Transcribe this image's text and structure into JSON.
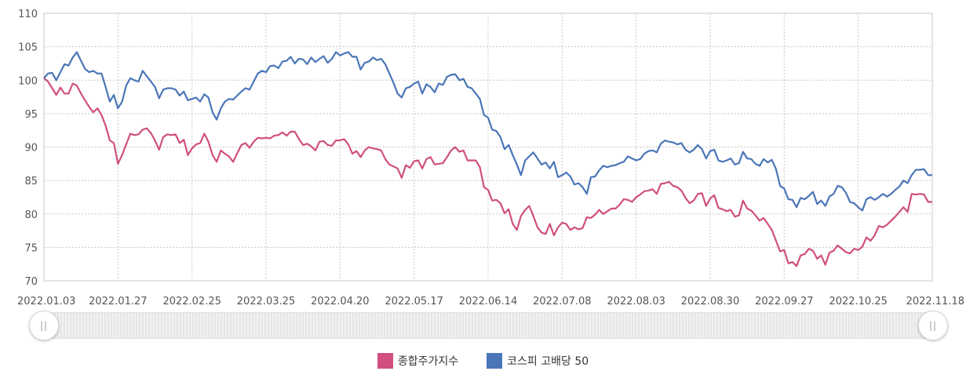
{
  "chart_data": {
    "type": "line",
    "x_ticks": [
      "2022.01.03",
      "2022.01.27",
      "2022.02.25",
      "2022.03.25",
      "2022.04.20",
      "2022.05.17",
      "2022.06.14",
      "2022.07.08",
      "2022.08.03",
      "2022.08.30",
      "2022.09.27",
      "2022.10.25",
      "2022.11.18"
    ],
    "y_ticks": [
      110,
      105,
      100,
      95,
      90,
      85,
      80,
      75,
      70
    ],
    "ylim": [
      70,
      110
    ],
    "grid": true,
    "legend_position": "bottom",
    "series": [
      {
        "name": "종합주가지수",
        "color": "#d04f7f",
        "values": [
          100.3,
          99.8,
          98.8,
          97.8,
          98.9,
          98.0,
          98.0,
          99.5,
          99.2,
          98.0,
          97.0,
          96.0,
          95.2,
          95.8,
          94.8,
          93.2,
          91.0,
          90.6,
          87.5,
          88.8,
          90.4,
          92.0,
          91.8,
          91.9,
          92.6,
          92.8,
          92.1,
          91.0,
          89.6,
          91.5,
          91.9,
          91.8,
          91.9,
          90.6,
          91.1,
          88.8,
          89.8,
          90.4,
          90.6,
          92.0,
          90.8,
          88.8,
          87.8,
          89.5,
          89.0,
          88.6,
          87.8,
          89.1,
          90.3,
          90.6,
          89.9,
          90.8,
          91.4,
          91.3,
          91.4,
          91.3,
          91.7,
          91.8,
          92.2,
          91.7,
          92.3,
          92.3,
          91.2,
          90.3,
          90.5,
          90.1,
          89.5,
          90.8,
          90.9,
          90.3,
          90.2,
          91.0,
          91.0,
          91.2,
          90.4,
          89.0,
          89.4,
          88.5,
          89.5,
          90.0,
          89.8,
          89.7,
          89.5,
          88.2,
          87.4,
          87.1,
          86.8,
          85.4,
          87.3,
          86.9,
          87.9,
          88.0,
          86.8,
          88.2,
          88.5,
          87.4,
          87.5,
          87.6,
          88.5,
          89.5,
          90.0,
          89.3,
          89.5,
          88.0,
          88.0,
          88.0,
          87.0,
          84.0,
          83.6,
          82.0,
          82.1,
          81.6,
          80.1,
          80.7,
          78.5,
          77.6,
          79.7,
          80.6,
          81.2,
          79.7,
          78.0,
          77.2,
          77.0,
          78.5,
          76.8,
          78.0,
          78.7,
          78.5,
          77.6,
          78.0,
          77.7,
          77.9,
          79.5,
          79.4,
          79.9,
          80.6,
          80.0,
          80.4,
          80.8,
          80.8,
          81.4,
          82.2,
          82.1,
          81.8,
          82.5,
          82.9,
          83.4,
          83.5,
          83.7,
          83.0,
          84.5,
          84.6,
          84.8,
          84.2,
          84.0,
          83.5,
          82.4,
          81.6,
          82.0,
          83.0,
          83.1,
          81.2,
          82.3,
          82.8,
          80.9,
          80.7,
          80.4,
          80.6,
          79.6,
          79.8,
          82.0,
          80.8,
          80.5,
          79.8,
          79.0,
          79.4,
          78.5,
          77.6,
          76.0,
          74.4,
          74.6,
          72.6,
          72.8,
          72.2,
          73.8,
          74.0,
          74.8,
          74.5,
          73.3,
          73.8,
          72.4,
          74.2,
          74.5,
          75.3,
          74.8,
          74.3,
          74.1,
          74.8,
          74.6,
          75.1,
          76.5,
          76.0,
          76.8,
          78.2,
          78.0,
          78.4,
          79.0,
          79.6,
          80.3,
          81.0,
          80.3,
          83.0,
          82.9,
          83.0,
          82.9,
          81.8,
          81.8
        ]
      },
      {
        "name": "코스피 고배당 50",
        "color": "#4a76b8",
        "values": [
          100.3,
          101.0,
          101.1,
          100.0,
          101.2,
          102.4,
          102.2,
          103.4,
          104.2,
          102.9,
          101.7,
          101.2,
          101.4,
          101.0,
          101.0,
          99.0,
          96.8,
          97.8,
          95.8,
          96.8,
          99.2,
          100.3,
          100.0,
          99.8,
          101.4,
          100.6,
          99.8,
          99.0,
          97.3,
          98.6,
          98.8,
          98.8,
          98.6,
          97.7,
          98.3,
          97.0,
          97.2,
          97.4,
          96.8,
          97.9,
          97.4,
          95.2,
          94.1,
          95.8,
          96.8,
          97.2,
          97.1,
          97.7,
          98.3,
          98.8,
          98.6,
          99.8,
          101.0,
          101.4,
          101.2,
          102.1,
          102.2,
          101.8,
          102.8,
          102.9,
          103.5,
          102.5,
          103.2,
          103.1,
          102.4,
          103.4,
          102.7,
          103.2,
          103.6,
          102.6,
          103.2,
          104.2,
          103.7,
          104.0,
          104.2,
          103.5,
          103.5,
          101.6,
          102.6,
          102.8,
          103.4,
          103.0,
          103.2,
          102.4,
          101.0,
          99.6,
          98.0,
          97.4,
          98.8,
          99.0,
          99.5,
          99.8,
          98.0,
          99.4,
          99.0,
          98.2,
          99.5,
          99.3,
          100.5,
          100.8,
          100.9,
          100.0,
          100.2,
          99.0,
          98.8,
          98.0,
          97.2,
          94.8,
          94.4,
          92.6,
          92.4,
          91.5,
          89.7,
          90.3,
          88.8,
          87.4,
          85.8,
          88.0,
          88.6,
          89.2,
          88.3,
          87.4,
          87.7,
          86.8,
          87.8,
          85.5,
          85.8,
          86.2,
          85.6,
          84.4,
          84.6,
          84.0,
          83.0,
          85.5,
          85.6,
          86.5,
          87.2,
          87.0,
          87.2,
          87.3,
          87.6,
          87.8,
          88.6,
          88.3,
          88.0,
          88.2,
          89.0,
          89.4,
          89.5,
          89.2,
          90.5,
          91.0,
          90.8,
          90.7,
          90.4,
          90.6,
          89.6,
          89.2,
          89.6,
          90.3,
          89.7,
          88.3,
          89.4,
          89.6,
          88.0,
          87.8,
          88.0,
          88.3,
          87.4,
          87.6,
          89.3,
          88.3,
          88.2,
          87.5,
          87.2,
          88.2,
          87.7,
          88.1,
          86.7,
          84.2,
          83.8,
          82.2,
          82.1,
          81.0,
          82.4,
          82.2,
          82.7,
          83.3,
          81.5,
          82.0,
          81.2,
          82.6,
          83.0,
          84.2,
          84.0,
          83.2,
          81.8,
          81.6,
          81.0,
          80.5,
          82.2,
          82.5,
          82.1,
          82.5,
          83.0,
          82.6,
          83.0,
          83.6,
          84.1,
          85.0,
          84.6,
          85.8,
          86.6,
          86.6,
          86.7,
          85.8,
          85.8
        ]
      }
    ]
  },
  "slider": {
    "left_handle_label": "||",
    "right_handle_label": "||",
    "start": 0,
    "end": 1
  }
}
